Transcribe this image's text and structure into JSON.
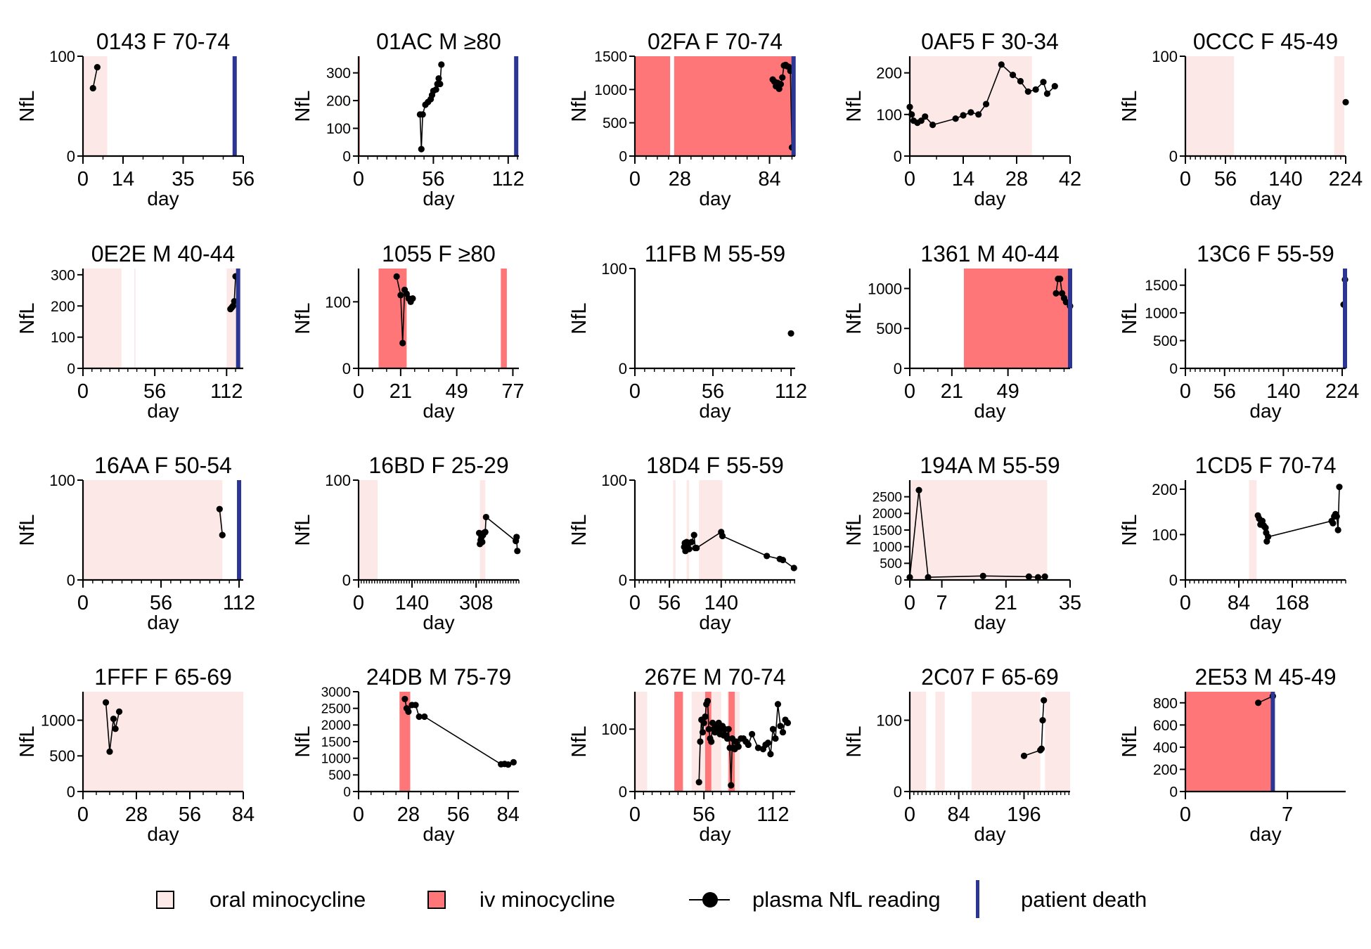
{
  "colors": {
    "oral": "#fde8e8",
    "iv": "#fe7677",
    "line": "#000000",
    "death": "#2b3593"
  },
  "legend": [
    {
      "key": "oral",
      "label": "oral minocycline"
    },
    {
      "key": "iv",
      "label": "iv minocycline"
    },
    {
      "key": "nfl",
      "label": "plasma NfL reading"
    },
    {
      "key": "death",
      "label": "patient death"
    }
  ],
  "chart_data": [
    {
      "type": "line",
      "title": "0143 F 70-74",
      "xlabel": "day",
      "ylabel": "NfL",
      "xlim": [
        0,
        56
      ],
      "ylim": [
        0,
        100
      ],
      "xticks": [
        "0",
        "14",
        "35",
        "56"
      ],
      "yticks": [
        "0",
        "100"
      ],
      "oral": [
        [
          0,
          8.5
        ]
      ],
      "iv": [],
      "death": 53,
      "x": [
        3.5,
        5
      ],
      "y": [
        68,
        89
      ]
    },
    {
      "type": "line",
      "title": "01AC M ≥80",
      "xlabel": "day",
      "ylabel": "NfL",
      "xlim": [
        0,
        120
      ],
      "ylim": [
        0,
        360
      ],
      "xticks": [
        "0",
        "56",
        "112"
      ],
      "yticks": [
        "0",
        "100",
        "200",
        "300"
      ],
      "oral": [],
      "iv": [
        [
          0,
          1
        ]
      ],
      "death": 118,
      "x": [
        46,
        47,
        48,
        50,
        52,
        54,
        55,
        56,
        58,
        59,
        60,
        61,
        62
      ],
      "y": [
        150,
        25,
        150,
        185,
        195,
        205,
        220,
        235,
        240,
        260,
        280,
        260,
        330
      ]
    },
    {
      "type": "line",
      "title": "02FA F 70-74",
      "xlabel": "day",
      "ylabel": "NfL",
      "xlim": [
        0,
        100
      ],
      "ylim": [
        0,
        1500
      ],
      "xticks": [
        "0",
        "28",
        "84"
      ],
      "yticks": [
        "0",
        "500",
        "1000",
        "1500"
      ],
      "oral": [],
      "iv": [
        [
          0,
          22
        ],
        [
          24.5,
          100
        ]
      ],
      "death": 99,
      "x": [
        86,
        87,
        88,
        89,
        90,
        91,
        92,
        93,
        94,
        95,
        96,
        97,
        98
      ],
      "y": [
        1150,
        1120,
        1050,
        1100,
        1010,
        1080,
        1180,
        1360,
        1370,
        1350,
        1340,
        1280,
        130
      ]
    },
    {
      "type": "line",
      "title": "0AF5 F 30-34",
      "xlabel": "day",
      "ylabel": "NfL",
      "xlim": [
        0,
        42
      ],
      "ylim": [
        0,
        240
      ],
      "xticks": [
        "0",
        "14",
        "28",
        "42"
      ],
      "yticks": [
        "0",
        "100",
        "200"
      ],
      "oral": [
        [
          0,
          32
        ]
      ],
      "iv": [],
      "death": null,
      "x": [
        0,
        0.5,
        1,
        2,
        3,
        4,
        6,
        12,
        14,
        16,
        18,
        20,
        24,
        27,
        29,
        31,
        33,
        35,
        36,
        38
      ],
      "y": [
        118,
        100,
        85,
        80,
        85,
        95,
        75,
        90,
        98,
        105,
        100,
        125,
        220,
        195,
        180,
        155,
        160,
        178,
        150,
        168
      ]
    },
    {
      "type": "line",
      "title": "0CCC F 45-49",
      "xlabel": "day",
      "ylabel": "NfL",
      "xlim": [
        0,
        224
      ],
      "ylim": [
        0,
        100
      ],
      "xticks": [
        "0",
        "56",
        "140",
        "224"
      ],
      "yticks": [
        "0",
        "100"
      ],
      "oral": [
        [
          0,
          68
        ],
        [
          208,
          222
        ]
      ],
      "iv": [],
      "death": null,
      "x": [
        224
      ],
      "y": [
        54
      ]
    },
    {
      "type": "line",
      "title": "0E2E M 40-44",
      "xlabel": "day",
      "ylabel": "NfL",
      "xlim": [
        0,
        125
      ],
      "ylim": [
        0,
        320
      ],
      "xticks": [
        "0",
        "56",
        "112"
      ],
      "yticks": [
        "0",
        "100",
        "200",
        "300"
      ],
      "oral": [
        [
          0,
          30
        ],
        [
          40,
          41
        ],
        [
          112,
          120
        ]
      ],
      "iv": [],
      "death": 121,
      "x": [
        115,
        116,
        117,
        118,
        119
      ],
      "y": [
        190,
        195,
        200,
        215,
        295
      ]
    },
    {
      "type": "line",
      "title": "1055 F ≥80",
      "xlabel": "day",
      "ylabel": "NfL",
      "xlim": [
        0,
        80
      ],
      "ylim": [
        0,
        150
      ],
      "xticks": [
        "0",
        "21",
        "49",
        "77"
      ],
      "yticks": [
        "0",
        "100"
      ],
      "oral": [],
      "iv": [
        [
          10,
          24
        ],
        [
          71,
          74
        ]
      ],
      "death": null,
      "x": [
        19,
        21,
        22,
        23,
        24,
        25,
        26,
        27
      ],
      "y": [
        138,
        110,
        38,
        118,
        112,
        105,
        100,
        105
      ]
    },
    {
      "type": "line",
      "title": "11FB M 55-59",
      "xlabel": "day",
      "ylabel": "NfL",
      "xlim": [
        0,
        115
      ],
      "ylim": [
        0,
        100
      ],
      "xticks": [
        "0",
        "56",
        "112"
      ],
      "yticks": [
        "0",
        "100"
      ],
      "oral": [],
      "iv": [],
      "death": null,
      "x": [
        112
      ],
      "y": [
        35
      ]
    },
    {
      "type": "line",
      "title": "1361 M 40-44",
      "xlabel": "day",
      "ylabel": "NfL",
      "xlim": [
        0,
        80
      ],
      "ylim": [
        0,
        1250
      ],
      "xticks": [
        "0",
        "21",
        "49"
      ],
      "yticks": [
        "0",
        "500",
        "1000"
      ],
      "oral": [],
      "iv": [
        [
          27,
          80
        ]
      ],
      "death": 80,
      "x": [
        73,
        74,
        75,
        76,
        77,
        78,
        80
      ],
      "y": [
        940,
        1120,
        1120,
        940,
        880,
        830,
        780
      ]
    },
    {
      "type": "line",
      "title": "13C6 F 55-59",
      "xlabel": "day",
      "ylabel": "NfL",
      "xlim": [
        0,
        229
      ],
      "ylim": [
        0,
        1800
      ],
      "xticks": [
        "0",
        "56",
        "140",
        "224"
      ],
      "yticks": [
        "0",
        "500",
        "1000",
        "1500"
      ],
      "oral": [],
      "iv": [],
      "death": 228,
      "x": [
        226,
        228
      ],
      "y": [
        1150,
        1600
      ]
    },
    {
      "type": "line",
      "title": "16AA F 50-54",
      "xlabel": "day",
      "ylabel": "NfL",
      "xlim": [
        0,
        115
      ],
      "ylim": [
        0,
        100
      ],
      "xticks": [
        "0",
        "56",
        "112"
      ],
      "yticks": [
        "0",
        "100"
      ],
      "oral": [
        [
          0,
          100
        ]
      ],
      "iv": [],
      "death": 112,
      "x": [
        98,
        100
      ],
      "y": [
        71,
        45
      ]
    },
    {
      "type": "line",
      "title": "16BD F 25-29",
      "xlabel": "day",
      "ylabel": "NfL",
      "xlim": [
        0,
        420
      ],
      "ylim": [
        0,
        100
      ],
      "xticks": [
        "0",
        "140",
        "308"
      ],
      "yticks": [
        "0",
        "100"
      ],
      "oral": [
        [
          0,
          50
        ],
        [
          318,
          332
        ]
      ],
      "iv": [],
      "death": null,
      "x": [
        316,
        318,
        320,
        322,
        324,
        326,
        328,
        332,
        334,
        412,
        414,
        416
      ],
      "y": [
        47,
        36,
        40,
        43,
        38,
        45,
        47,
        48,
        63,
        39,
        43,
        29
      ]
    },
    {
      "type": "line",
      "title": "18D4 F 55-59",
      "xlabel": "day",
      "ylabel": "NfL",
      "xlim": [
        0,
        260
      ],
      "ylim": [
        0,
        100
      ],
      "xticks": [
        "0",
        "56",
        "140"
      ],
      "yticks": [
        "0",
        "100"
      ],
      "oral": [
        [
          62,
          66
        ],
        [
          84,
          88
        ],
        [
          104,
          142
        ]
      ],
      "iv": [],
      "death": null,
      "x": [
        80,
        81,
        82,
        84,
        86,
        88,
        92,
        96,
        98,
        100,
        140,
        142,
        214,
        235,
        240,
        258
      ],
      "y": [
        33,
        37,
        29,
        38,
        36,
        31,
        38,
        45,
        32,
        32,
        48,
        44,
        24,
        21,
        20,
        12
      ]
    },
    {
      "type": "line",
      "title": "194A M 55-59",
      "xlabel": "day",
      "ylabel": "NfL",
      "xlim": [
        0,
        35
      ],
      "ylim": [
        0,
        3000
      ],
      "xticks": [
        "0",
        "7",
        "21",
        "35"
      ],
      "yticks": [
        "0",
        "500",
        "1000",
        "1500",
        "2000",
        "2500"
      ],
      "oral": [
        [
          0,
          30
        ]
      ],
      "iv": [],
      "death": null,
      "x": [
        0,
        2,
        4,
        16,
        26,
        28,
        29.5
      ],
      "y": [
        80,
        2700,
        80,
        120,
        100,
        80,
        100
      ]
    },
    {
      "type": "line",
      "title": "1CD5 F 70-74",
      "xlabel": "day",
      "ylabel": "NfL",
      "xlim": [
        0,
        252
      ],
      "ylim": [
        0,
        220
      ],
      "xticks": [
        "0",
        "84",
        "168"
      ],
      "yticks": [
        "0",
        "100",
        "200"
      ],
      "oral": [
        [
          100,
          112
        ]
      ],
      "iv": [],
      "death": null,
      "x": [
        114,
        116,
        118,
        119,
        121,
        123,
        124,
        126,
        127,
        128,
        130,
        230,
        232,
        234,
        236,
        238,
        240,
        242
      ],
      "y": [
        142,
        135,
        122,
        125,
        130,
        120,
        118,
        115,
        104,
        85,
        95,
        130,
        125,
        140,
        145,
        140,
        110,
        205
      ]
    },
    {
      "type": "line",
      "title": "1FFF F 65-69",
      "xlabel": "day",
      "ylabel": "NfL",
      "xlim": [
        0,
        84
      ],
      "ylim": [
        0,
        1400
      ],
      "xticks": [
        "0",
        "28",
        "56",
        "84"
      ],
      "yticks": [
        "0",
        "500",
        "1000"
      ],
      "oral": [
        [
          0,
          84
        ]
      ],
      "iv": [],
      "death": null,
      "x": [
        12,
        14,
        16,
        17,
        19
      ],
      "y": [
        1250,
        560,
        1020,
        880,
        1120
      ]
    },
    {
      "type": "line",
      "title": "24DB M 75-79",
      "xlabel": "day",
      "ylabel": "NfL",
      "xlim": [
        0,
        90
      ],
      "ylim": [
        0,
        3000
      ],
      "xticks": [
        "0",
        "28",
        "56",
        "84"
      ],
      "yticks": [
        "0",
        "500",
        "1000",
        "1500",
        "2000",
        "2500",
        "3000"
      ],
      "oral": [],
      "iv": [
        [
          23,
          29
        ]
      ],
      "death": null,
      "x": [
        26,
        27,
        28,
        30,
        32,
        34,
        37,
        80,
        82,
        84,
        87
      ],
      "y": [
        2780,
        2500,
        2400,
        2600,
        2600,
        2250,
        2250,
        820,
        830,
        810,
        880
      ]
    },
    {
      "type": "line",
      "title": "267E M 70-74",
      "xlabel": "day",
      "ylabel": "NfL",
      "xlim": [
        0,
        130
      ],
      "ylim": [
        0,
        160
      ],
      "xticks": [
        "0",
        "56",
        "112"
      ],
      "yticks": [
        "0",
        "100"
      ],
      "oral": [
        [
          0,
          10
        ],
        [
          46,
          70
        ],
        [
          75,
          85
        ]
      ],
      "iv": [
        [
          32,
          39
        ],
        [
          57,
          62
        ],
        [
          76,
          81
        ]
      ],
      "death": null,
      "x": [
        52,
        53,
        54,
        55,
        56,
        57,
        58,
        59,
        60,
        61,
        62,
        63,
        64,
        65,
        66,
        67,
        68,
        69,
        70,
        71,
        72,
        73,
        74,
        75,
        76,
        77,
        78,
        79,
        80,
        81,
        82,
        84,
        86,
        88,
        90,
        92,
        95,
        100,
        104,
        106,
        108,
        110,
        112,
        114,
        116,
        118,
        120,
        122,
        124
      ],
      "y": [
        15,
        80,
        115,
        95,
        110,
        120,
        140,
        145,
        100,
        85,
        80,
        110,
        100,
        95,
        105,
        100,
        110,
        92,
        100,
        105,
        90,
        100,
        90,
        85,
        100,
        70,
        10,
        85,
        70,
        68,
        80,
        72,
        85,
        85,
        80,
        75,
        92,
        70,
        68,
        75,
        78,
        60,
        100,
        85,
        140,
        105,
        95,
        115,
        110
      ]
    },
    {
      "type": "line",
      "title": "2C07 F 65-69",
      "xlabel": "day",
      "ylabel": "NfL",
      "xlim": [
        0,
        275
      ],
      "ylim": [
        0,
        140
      ],
      "xticks": [
        "0",
        "84",
        "196"
      ],
      "yticks": [
        "0",
        "100"
      ],
      "oral": [
        [
          0,
          28
        ],
        [
          44,
          60
        ],
        [
          106,
          224
        ],
        [
          232,
          275
        ]
      ],
      "iv": [],
      "death": null,
      "x": [
        196,
        224,
        226,
        228,
        230
      ],
      "y": [
        50,
        58,
        60,
        100,
        128
      ]
    },
    {
      "type": "line",
      "title": "2E53 M 45-49",
      "xlabel": "day",
      "ylabel": "NfL",
      "xlim": [
        0,
        11
      ],
      "ylim": [
        0,
        900
      ],
      "xticks": [
        "0",
        "7"
      ],
      "yticks": [
        "0",
        "200",
        "400",
        "600",
        "800"
      ],
      "oral": [],
      "iv": [
        [
          0,
          6
        ]
      ],
      "death": 6,
      "x": [
        5,
        6
      ],
      "y": [
        800,
        860
      ]
    }
  ]
}
